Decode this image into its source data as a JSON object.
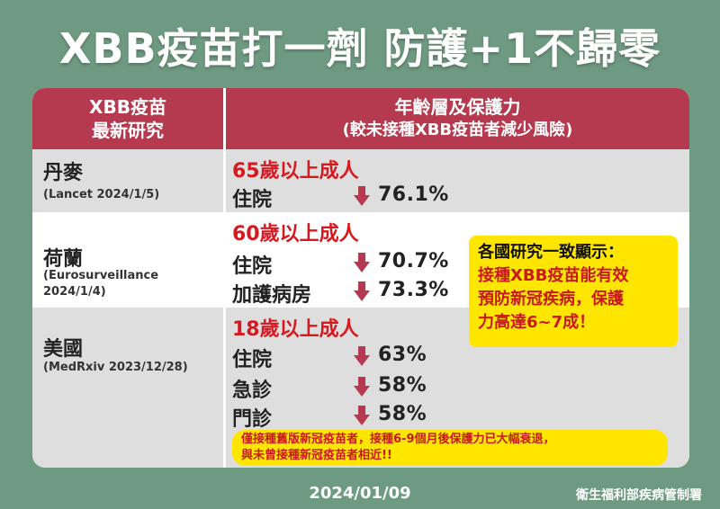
{
  "title": "XBB疫苗打一劑 防護+1不歸零",
  "table": {
    "header_left": [
      "XBB疫苗",
      "最新研究"
    ],
    "header_right": "年齡層及保護力",
    "header_right_sub": "(較未接種XBB疫苗者減少風險)",
    "rows": [
      {
        "country": "丹麥",
        "source": [
          "(Lancet 2024/1/5)"
        ],
        "age_group": "65歲以上成人",
        "results": [
          {
            "metric": "住院",
            "value": "76.1%"
          }
        ]
      },
      {
        "country": "荷蘭",
        "source": [
          "(Eurosurveillance",
          "2024/1/4)"
        ],
        "age_group": "60歲以上成人",
        "results": [
          {
            "metric": "住院",
            "value": "70.7%"
          },
          {
            "metric": "加護病房",
            "value": "73.3%"
          }
        ]
      },
      {
        "country": "美國",
        "source": [
          "(MedRxiv 2023/12/28)"
        ],
        "age_group": "18歲以上成人",
        "results": [
          {
            "metric": "住院",
            "value": "63%"
          },
          {
            "metric": "急診",
            "value": "58%"
          },
          {
            "metric": "門診",
            "value": "58%"
          }
        ]
      }
    ]
  },
  "callout": {
    "head": "各國研究一致顯示：",
    "body": [
      "接種XBB疫苗能有效",
      "預防新冠疾病，保護",
      "力高達6~7成！"
    ]
  },
  "note": [
    "僅接種舊版新冠疫苗者，接種6-9個月後保護力已大幅衰退，",
    "與未曾接種新冠疫苗者相近!!"
  ],
  "footer": {
    "date": "2024/01/09",
    "org": "衛生福利部疾病管制署"
  },
  "colors": {
    "background": "#6f9a82",
    "header": "#b5394f",
    "accent_red": "#d6191f",
    "highlight_yellow": "#ffe600",
    "row_gray": "#dedede"
  },
  "icons": {
    "decrease": "arrow-down-icon"
  }
}
